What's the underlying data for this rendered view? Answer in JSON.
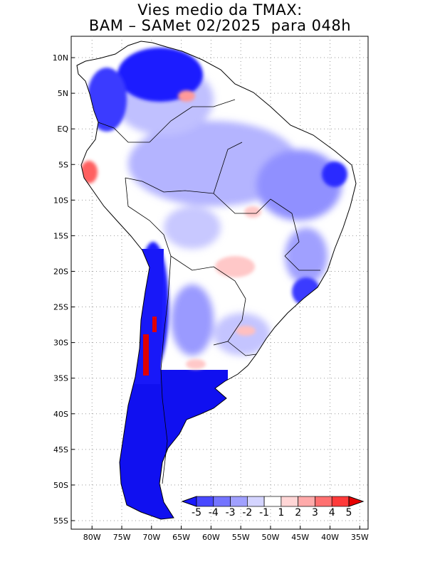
{
  "title": {
    "line1": "Vies medio da TMAX:",
    "line2": "BAM – SAMet 02/2025  para 048h"
  },
  "map": {
    "region": "South America",
    "lon_range": [
      -85,
      -35
    ],
    "lat_range": [
      -56,
      13
    ],
    "lat_ticks": [
      "10N",
      "5N",
      "EQ",
      "5S",
      "10S",
      "15S",
      "20S",
      "25S",
      "30S",
      "35S",
      "40S",
      "45S",
      "50S",
      "55S"
    ],
    "lon_ticks": [
      "80W",
      "75W",
      "70W",
      "65W",
      "60W",
      "55W",
      "50W",
      "45W",
      "40W",
      "35W"
    ],
    "gridlines": "dotted"
  },
  "colorbar": {
    "labels": [
      "-5",
      "-4",
      "-3",
      "-2",
      "-1",
      "1",
      "2",
      "3",
      "4",
      "5"
    ],
    "colors": [
      "#1a1aff",
      "#4848ff",
      "#7474ff",
      "#a0a0ff",
      "#d4d4ff",
      "#ffffff",
      "#ffd6d6",
      "#ffaaaa",
      "#ff7070",
      "#ff3a3a",
      "#e60000"
    ]
  },
  "colors": {
    "strong_cold": "#1010f0",
    "cold": "#5a5aff",
    "mild_cold": "#a8a8ff",
    "warm": "#ffb4b4",
    "hot": "#e01010"
  }
}
